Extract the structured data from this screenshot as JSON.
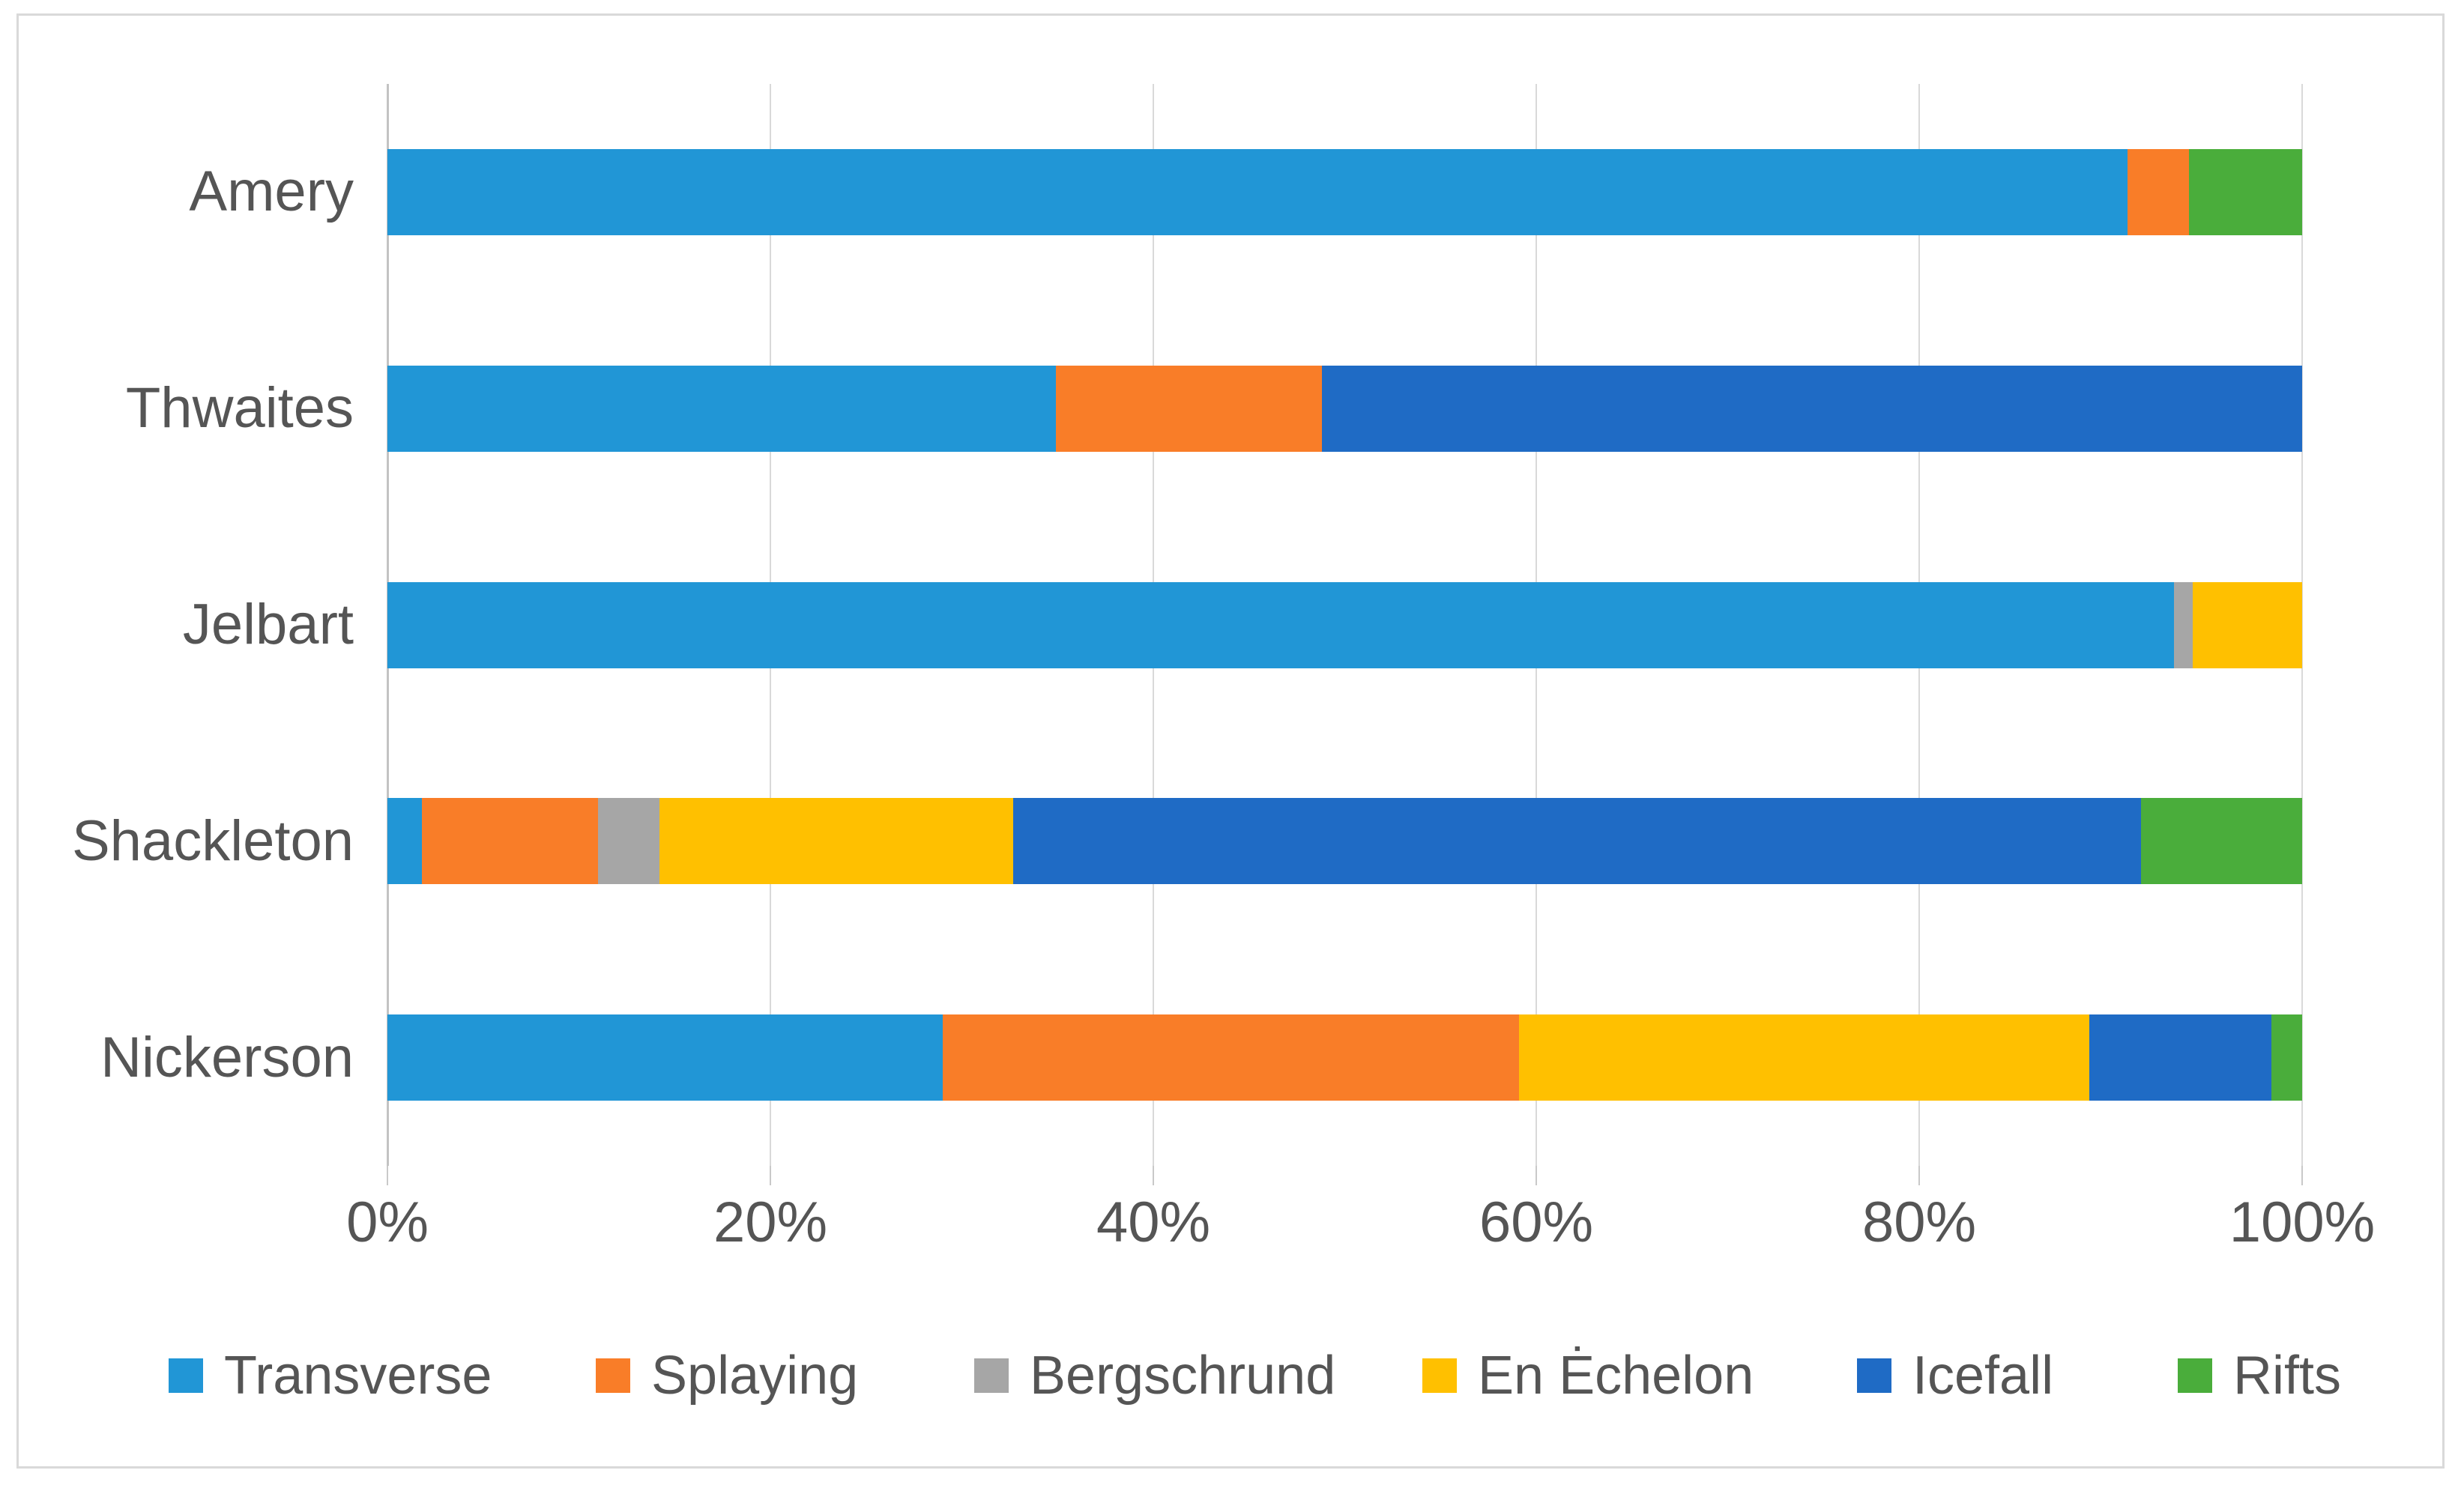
{
  "chart_data": {
    "type": "bar",
    "orientation": "horizontal",
    "stacked": "percent",
    "title": "",
    "xlabel": "",
    "ylabel": "",
    "grid": true,
    "legend_position": "bottom",
    "categories": [
      "Amery",
      "Thwaites",
      "Jelbart",
      "Shackleton",
      "Nickerson"
    ],
    "series": [
      {
        "name": "Transverse",
        "color": "#2196d6",
        "values": [
          90.9,
          34.9,
          93.3,
          1.8,
          29.0
        ]
      },
      {
        "name": "Splaying",
        "color": "#f97d28",
        "values": [
          3.2,
          13.9,
          0,
          9.2,
          30.1
        ]
      },
      {
        "name": "Bergschrund",
        "color": "#a6a6a6",
        "values": [
          0,
          0,
          1.0,
          3.2,
          0
        ]
      },
      {
        "name": "En Ėchelon",
        "color": "#ffc000",
        "values": [
          0,
          0,
          5.7,
          18.5,
          29.8
        ]
      },
      {
        "name": "Icefall",
        "color": "#1f6bc5",
        "values": [
          0,
          51.2,
          0,
          58.9,
          9.5
        ]
      },
      {
        "name": "Rifts",
        "color": "#4aad3b",
        "values": [
          5.9,
          0,
          0,
          8.4,
          1.6
        ]
      }
    ],
    "x_axis": {
      "ticks": [
        "0%",
        "20%",
        "40%",
        "60%",
        "80%",
        "100%"
      ],
      "range": [
        0,
        100
      ]
    },
    "colors": {
      "gridline": "#d9d9d9",
      "axis_line": "#c3c3c3",
      "label_text": "#555555",
      "frame_border": "#d9d9d9",
      "background": "#ffffff"
    }
  }
}
